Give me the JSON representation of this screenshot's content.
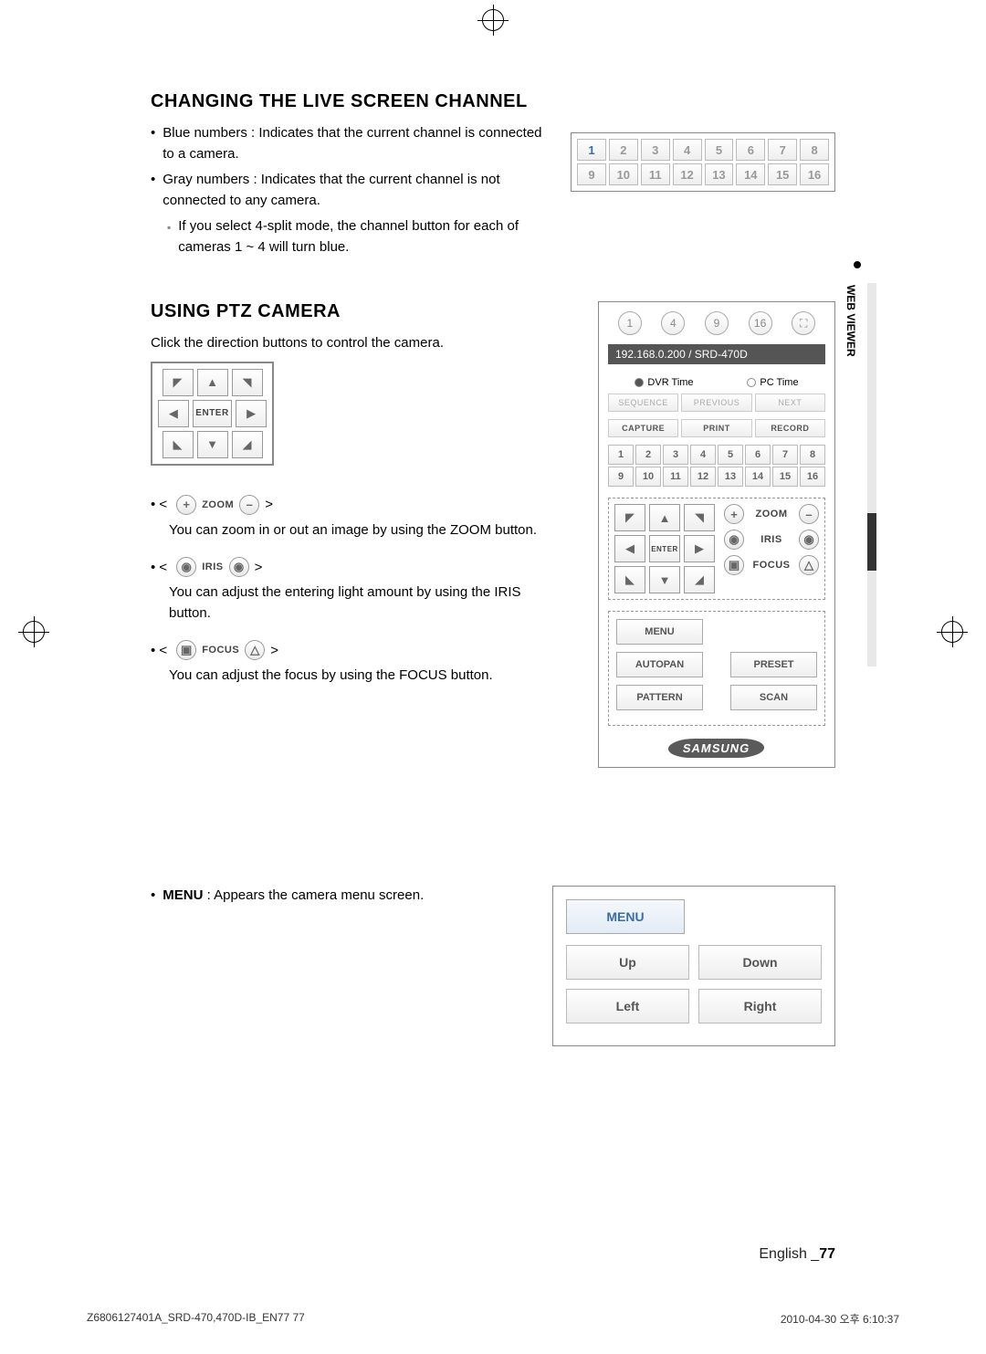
{
  "section1": {
    "title": "CHANGING THE LIVE SCREEN CHANNEL",
    "b1": "Blue numbers : Indicates that the current channel is connected to a camera.",
    "b2": "Gray numbers : Indicates that the current channel is not connected to any camera.",
    "sub": "If you select 4-split mode, the channel button for each of cameras 1 ~ 4 will turn blue."
  },
  "channelPanel": {
    "nums": [
      "1",
      "2",
      "3",
      "4",
      "5",
      "6",
      "7",
      "8",
      "9",
      "10",
      "11",
      "12",
      "13",
      "14",
      "15",
      "16"
    ],
    "blueIdx": [
      0
    ]
  },
  "section2": {
    "title": "USING PTZ CAMERA",
    "intro": "Click the direction buttons to control the camera.",
    "enter": "ENTER",
    "zoom_label": "ZOOM",
    "zoom_desc": "You can zoom in or out an image by using the ZOOM button.",
    "iris_label": "IRIS",
    "iris_desc": "You can adjust the entering light amount by using the IRIS button.",
    "focus_label": "FOCUS",
    "focus_desc": "You can adjust the focus by using the FOCUS button."
  },
  "ptzPanel": {
    "topCircles": [
      "1",
      "4",
      "9",
      "16"
    ],
    "ip": "192.168.0.200  / SRD-470D",
    "dvr": "DVR Time",
    "pc": "PC Time",
    "row1": [
      "SEQUENCE",
      "PREVIOUS",
      "NEXT"
    ],
    "row2": [
      "CAPTURE",
      "PRINT",
      "RECORD"
    ],
    "ch": [
      "1",
      "2",
      "3",
      "4",
      "5",
      "6",
      "7",
      "8",
      "9",
      "10",
      "11",
      "12",
      "13",
      "14",
      "15",
      "16"
    ],
    "zoom": "ZOOM",
    "iris": "IRIS",
    "focus": "FOCUS",
    "enter": "ENTER",
    "menu": "MENU",
    "autopan": "AUTOPAN",
    "preset": "PRESET",
    "pattern": "PATTERN",
    "scan": "SCAN",
    "logo": "SAMSUNG"
  },
  "section3": {
    "menu_bold": "MENU",
    "menu_rest": " : Appears the camera menu screen.",
    "header": "MENU",
    "up": "Up",
    "down": "Down",
    "left": "Left",
    "right": "Right"
  },
  "sideTab": "WEB VIEWER",
  "footer": {
    "lang": "English",
    "sep": " _",
    "page": "77"
  },
  "printFooter": {
    "left": "Z6806127401A_SRD-470,470D-IB_EN77   77",
    "right": "2010-04-30   오후 6:10:37"
  }
}
